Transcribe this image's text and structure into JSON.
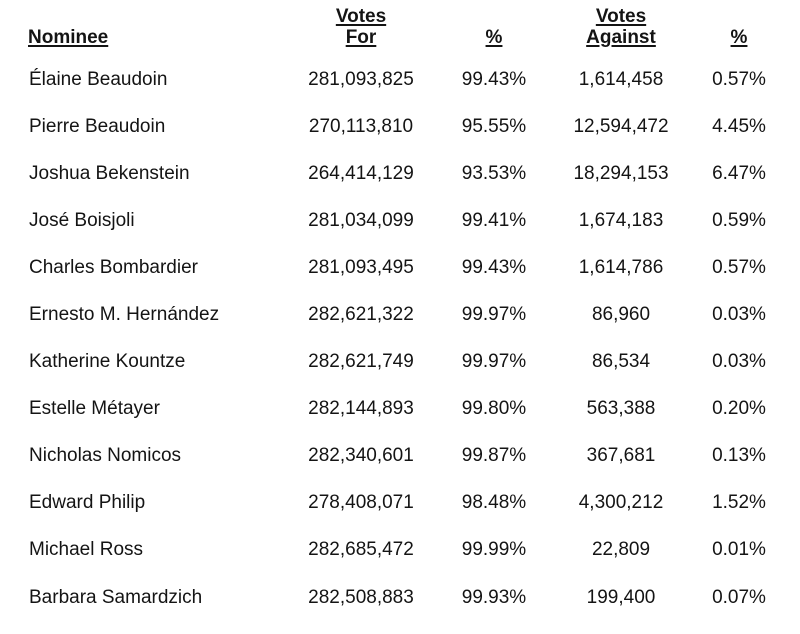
{
  "table": {
    "headers": {
      "nominee": "Nominee",
      "votes_for_line1": "Votes",
      "votes_for_line2": "For",
      "pct_for": "%",
      "votes_against_line1": "Votes",
      "votes_against_line2": "Against",
      "pct_against": "%"
    },
    "rows": [
      {
        "nominee": "Élaine Beaudoin",
        "votes_for": "281,093,825",
        "pct_for": "99.43%",
        "votes_against": "1,614,458",
        "pct_against": "0.57%"
      },
      {
        "nominee": "Pierre Beaudoin",
        "votes_for": "270,113,810",
        "pct_for": "95.55%",
        "votes_against": "12,594,472",
        "pct_against": "4.45%"
      },
      {
        "nominee": "Joshua Bekenstein",
        "votes_for": "264,414,129",
        "pct_for": "93.53%",
        "votes_against": "18,294,153",
        "pct_against": "6.47%"
      },
      {
        "nominee": "José Boisjoli",
        "votes_for": "281,034,099",
        "pct_for": "99.41%",
        "votes_against": "1,674,183",
        "pct_against": "0.59%"
      },
      {
        "nominee": "Charles Bombardier",
        "votes_for": "281,093,495",
        "pct_for": "99.43%",
        "votes_against": "1,614,786",
        "pct_against": "0.57%"
      },
      {
        "nominee": "Ernesto M. Hernández",
        "votes_for": "282,621,322",
        "pct_for": "99.97%",
        "votes_against": "86,960",
        "pct_against": "0.03%"
      },
      {
        "nominee": "Katherine Kountze",
        "votes_for": "282,621,749",
        "pct_for": "99.97%",
        "votes_against": "86,534",
        "pct_against": "0.03%"
      },
      {
        "nominee": "Estelle Métayer",
        "votes_for": "282,144,893",
        "pct_for": "99.80%",
        "votes_against": "563,388",
        "pct_against": "0.20%"
      },
      {
        "nominee": "Nicholas Nomicos",
        "votes_for": "282,340,601",
        "pct_for": "99.87%",
        "votes_against": "367,681",
        "pct_against": "0.13%"
      },
      {
        "nominee": "Edward Philip",
        "votes_for": "278,408,071",
        "pct_for": "98.48%",
        "votes_against": "4,300,212",
        "pct_against": "1.52%"
      },
      {
        "nominee": "Michael Ross",
        "votes_for": "282,685,472",
        "pct_for": "99.99%",
        "votes_against": "22,809",
        "pct_against": "0.01%"
      },
      {
        "nominee": "Barbara Samardzich",
        "votes_for": "282,508,883",
        "pct_for": "99.93%",
        "votes_against": "199,400",
        "pct_against": "0.07%"
      }
    ]
  }
}
